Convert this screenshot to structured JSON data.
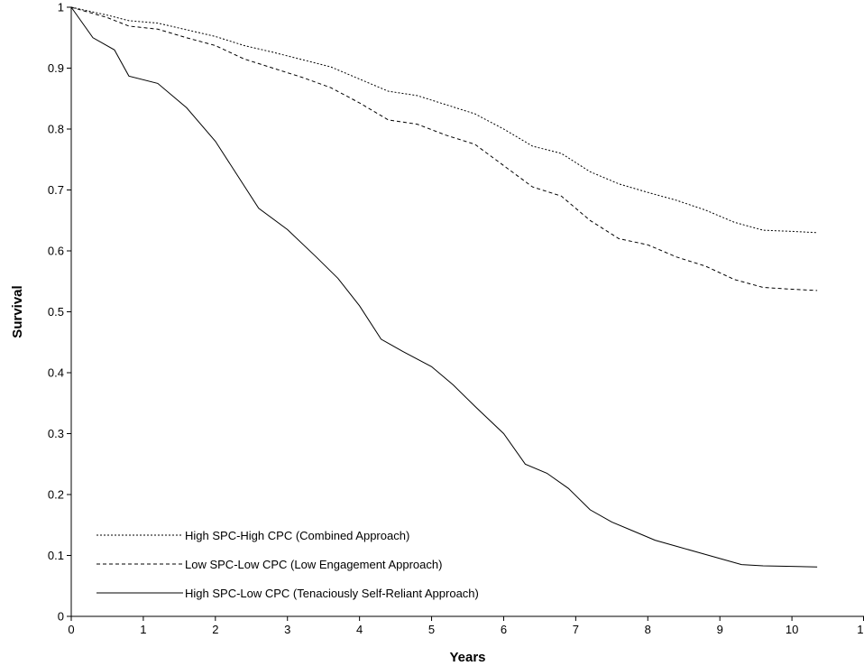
{
  "chart_data": {
    "type": "line",
    "title": "",
    "xlabel": "Years",
    "ylabel": "Survival",
    "xlim": [
      0,
      11
    ],
    "ylim": [
      0,
      1.0
    ],
    "xticks": [
      "0",
      "1",
      "2",
      "3",
      "4",
      "5",
      "6",
      "7",
      "8",
      "9",
      "10",
      "1"
    ],
    "yticks": [
      "0",
      "0.1",
      "0.2",
      "0.3",
      "0.4",
      "0.5",
      "0.6",
      "0.7",
      "0.8",
      "0.9",
      "1"
    ],
    "grid": false,
    "legend_position": "bottom-left",
    "series": [
      {
        "name": "High SPC-High CPC (Combined Approach)",
        "style": "dotted",
        "color": "#000000",
        "x": [
          0,
          0.5,
          0.8,
          1.2,
          1.6,
          2.0,
          2.4,
          2.8,
          3.2,
          3.6,
          4.0,
          4.4,
          4.8,
          5.2,
          5.6,
          6.0,
          6.4,
          6.8,
          7.2,
          7.6,
          8.0,
          8.4,
          8.8,
          9.2,
          9.6,
          10.0,
          10.35
        ],
        "y": [
          1.0,
          0.987,
          0.978,
          0.974,
          0.963,
          0.952,
          0.937,
          0.926,
          0.914,
          0.902,
          0.882,
          0.862,
          0.855,
          0.84,
          0.825,
          0.8,
          0.772,
          0.76,
          0.73,
          0.71,
          0.696,
          0.683,
          0.667,
          0.647,
          0.634,
          0.632,
          0.63
        ]
      },
      {
        "name": "Low SPC-Low CPC (Low Engagement Approach)",
        "style": "dashed",
        "color": "#000000",
        "x": [
          0,
          0.5,
          0.8,
          1.2,
          1.6,
          2.0,
          2.4,
          2.8,
          3.2,
          3.6,
          4.0,
          4.4,
          4.8,
          5.2,
          5.6,
          6.0,
          6.4,
          6.8,
          7.2,
          7.6,
          8.0,
          8.4,
          8.8,
          9.2,
          9.6,
          10.0,
          10.35
        ],
        "y": [
          1.0,
          0.983,
          0.969,
          0.964,
          0.95,
          0.937,
          0.915,
          0.9,
          0.885,
          0.868,
          0.843,
          0.815,
          0.808,
          0.79,
          0.775,
          0.74,
          0.705,
          0.69,
          0.65,
          0.62,
          0.61,
          0.59,
          0.575,
          0.553,
          0.54,
          0.537,
          0.535
        ]
      },
      {
        "name": "High SPC-Low CPC (Tenaciously Self-Reliant Approach)",
        "style": "solid",
        "color": "#000000",
        "x": [
          0,
          0.3,
          0.6,
          0.8,
          1.2,
          1.6,
          2.0,
          2.3,
          2.6,
          3.0,
          3.4,
          3.7,
          4.0,
          4.3,
          4.6,
          5.0,
          5.3,
          5.6,
          6.0,
          6.3,
          6.6,
          6.9,
          7.2,
          7.5,
          7.8,
          8.1,
          8.4,
          8.7,
          9.0,
          9.3,
          9.6,
          10.0,
          10.35
        ],
        "y": [
          1.0,
          0.95,
          0.93,
          0.887,
          0.875,
          0.835,
          0.78,
          0.725,
          0.67,
          0.635,
          0.59,
          0.555,
          0.51,
          0.455,
          0.435,
          0.41,
          0.38,
          0.345,
          0.3,
          0.25,
          0.235,
          0.21,
          0.175,
          0.155,
          0.14,
          0.125,
          0.115,
          0.105,
          0.095,
          0.085,
          0.083,
          0.082,
          0.081
        ]
      }
    ]
  }
}
